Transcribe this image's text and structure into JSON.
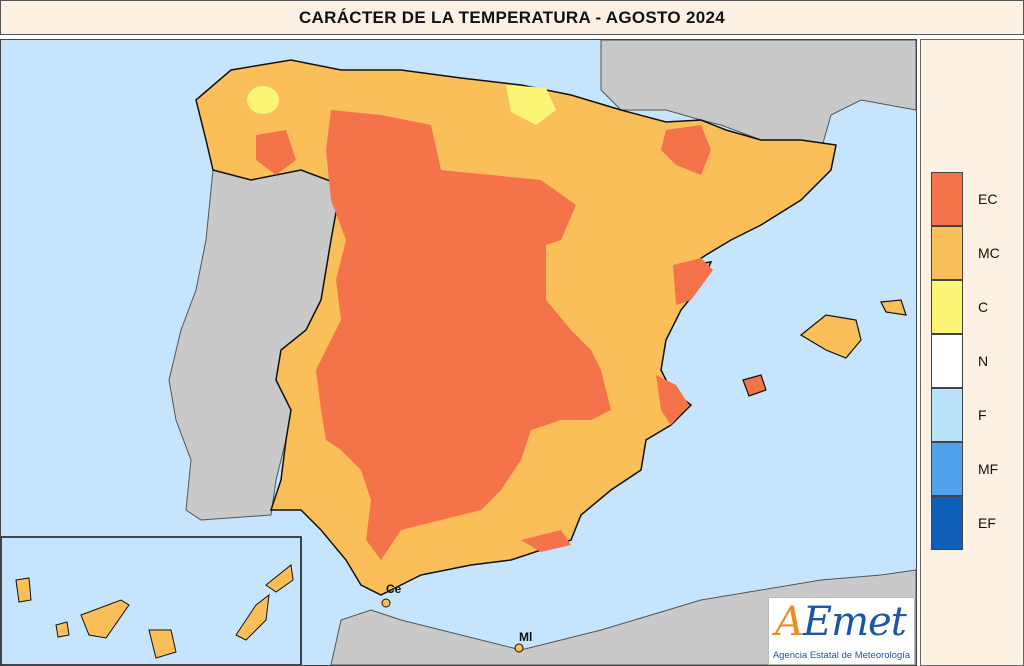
{
  "title": "CARÁCTER DE LA TEMPERATURA - AGOSTO 2024",
  "legend": [
    {
      "code": "EC",
      "color": "#f4734a"
    },
    {
      "code": "MC",
      "color": "#fbbf5a"
    },
    {
      "code": "C",
      "color": "#fbf675"
    },
    {
      "code": "N",
      "color": "#ffffff"
    },
    {
      "code": "F",
      "color": "#b8e3f8"
    },
    {
      "code": "MF",
      "color": "#4fa3ec"
    },
    {
      "code": "EF",
      "color": "#0d5fb8"
    }
  ],
  "map_labels": {
    "ceuta": "Ce",
    "melilla": "Ml"
  },
  "logo": {
    "brand": "AEmet",
    "brand_a": "A",
    "brand_rest": "Emet",
    "subtitle": "Agencia Estatal de Meteorología"
  },
  "colors": {
    "sea": "#c6e4fb",
    "land_other": "#c9c9c9",
    "border": "#111111"
  }
}
